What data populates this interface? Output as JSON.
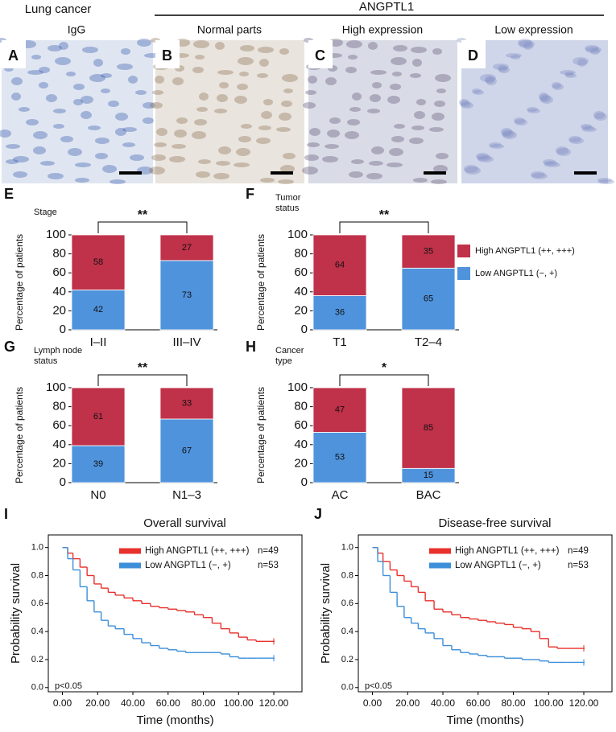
{
  "header": {
    "left": "Lung cancer",
    "right": "ANGPTL1"
  },
  "images": [
    {
      "letter": "A",
      "caption": "IgG"
    },
    {
      "letter": "B",
      "caption": "Normal parts"
    },
    {
      "letter": "C",
      "caption": "High expression"
    },
    {
      "letter": "D",
      "caption": "Low expression"
    }
  ],
  "chart_data": [
    {
      "type": "bar",
      "stacked": true,
      "letter": "E",
      "title": "Stage",
      "ylabel": "Percentage of patients",
      "significance": "**",
      "categories": [
        "I–II",
        "III–IV"
      ],
      "series": [
        {
          "color": "#4f93dd",
          "values": [
            42,
            73
          ]
        },
        {
          "color": "#c0314a",
          "values": [
            58,
            27
          ]
        }
      ],
      "ylim": [
        0,
        100
      ],
      "yticks": [
        0,
        20,
        40,
        60,
        80,
        100
      ]
    },
    {
      "type": "bar",
      "stacked": true,
      "letter": "F",
      "title": "Tumor status",
      "ylabel": "Percentage of patients",
      "significance": "**",
      "categories": [
        "T1",
        "T2–4"
      ],
      "legend": "right",
      "series": [
        {
          "name": "Low ANGPTL1 (−, +)",
          "color": "#4f93dd",
          "values": [
            36,
            65
          ]
        },
        {
          "name": "High ANGPTL1 (++, +++)",
          "color": "#c0314a",
          "values": [
            64,
            35
          ]
        }
      ],
      "ylim": [
        0,
        100
      ],
      "yticks": [
        0,
        20,
        40,
        60,
        80,
        100
      ]
    },
    {
      "type": "bar",
      "stacked": true,
      "letter": "G",
      "title": "Lymph node status",
      "ylabel": "Percentage of patients",
      "significance": "**",
      "categories": [
        "N0",
        "N1–3"
      ],
      "series": [
        {
          "color": "#4f93dd",
          "values": [
            39,
            67
          ]
        },
        {
          "color": "#c0314a",
          "values": [
            61,
            33
          ]
        }
      ],
      "ylim": [
        0,
        100
      ],
      "yticks": [
        0,
        20,
        40,
        60,
        80,
        100
      ]
    },
    {
      "type": "bar",
      "stacked": true,
      "letter": "H",
      "title": "Cancer type",
      "ylabel": "Percentage of patients",
      "significance": "*",
      "categories": [
        "AC",
        "BAC"
      ],
      "series": [
        {
          "color": "#4f93dd",
          "values": [
            53,
            15
          ]
        },
        {
          "color": "#c0314a",
          "values": [
            47,
            85
          ]
        }
      ],
      "ylim": [
        0,
        100
      ],
      "yticks": [
        0,
        20,
        40,
        60,
        80,
        100
      ]
    },
    {
      "type": "step",
      "letter": "I",
      "title": "Overall survival",
      "xlabel": "Time (months)",
      "ylabel": "Probability survival",
      "annotation": "p<0.05",
      "x": [
        0,
        3,
        6,
        10,
        14,
        18,
        22,
        26,
        30,
        35,
        40,
        45,
        50,
        55,
        60,
        65,
        70,
        75,
        80,
        85,
        90,
        95,
        100,
        105,
        110,
        120
      ],
      "series": [
        {
          "name": "High ANGPTL1 (++, +++)",
          "n": "n=49",
          "color": "#e8302c",
          "values": [
            1,
            0.96,
            0.92,
            0.86,
            0.8,
            0.74,
            0.71,
            0.68,
            0.66,
            0.64,
            0.62,
            0.6,
            0.58,
            0.57,
            0.56,
            0.55,
            0.54,
            0.52,
            0.5,
            0.46,
            0.42,
            0.39,
            0.36,
            0.34,
            0.33,
            0.33
          ]
        },
        {
          "name": "Low ANGPTL1 (−, +)",
          "n": "n=53",
          "color": "#3c8fd8",
          "values": [
            1,
            0.92,
            0.84,
            0.72,
            0.62,
            0.54,
            0.48,
            0.44,
            0.42,
            0.38,
            0.35,
            0.32,
            0.3,
            0.28,
            0.27,
            0.26,
            0.25,
            0.25,
            0.25,
            0.25,
            0.24,
            0.22,
            0.21,
            0.21,
            0.21,
            0.21
          ]
        }
      ],
      "xlim": [
        -8,
        136
      ],
      "ylim": [
        -0.03,
        1.09
      ],
      "xticks": [
        {
          "value": 0,
          "label": "0.00"
        },
        {
          "value": 20,
          "label": "20.00"
        },
        {
          "value": 40,
          "label": "40.00"
        },
        {
          "value": 60,
          "label": "60.00"
        },
        {
          "value": 80,
          "label": "80.00"
        },
        {
          "value": 100,
          "label": "100.00"
        },
        {
          "value": 120,
          "label": "120.00"
        }
      ],
      "yticks": [
        {
          "value": 0,
          "label": "0.0"
        },
        {
          "value": 0.2,
          "label": "0.2"
        },
        {
          "value": 0.4,
          "label": "0.4"
        },
        {
          "value": 0.6,
          "label": "0.6"
        },
        {
          "value": 0.8,
          "label": "0.8"
        },
        {
          "value": 1,
          "label": "1.0"
        }
      ]
    },
    {
      "type": "step",
      "letter": "J",
      "title": "Disease-free survival",
      "xlabel": "Time (months)",
      "ylabel": "Probability survival",
      "annotation": "p<0.05",
      "x": [
        0,
        3,
        6,
        10,
        14,
        18,
        22,
        26,
        30,
        35,
        40,
        45,
        50,
        55,
        60,
        65,
        70,
        75,
        80,
        85,
        90,
        95,
        100,
        105,
        110,
        120
      ],
      "series": [
        {
          "name": "High ANGPTL1 (++, +++)",
          "n": "n=49",
          "color": "#e8302c",
          "values": [
            1,
            0.96,
            0.9,
            0.84,
            0.8,
            0.76,
            0.72,
            0.68,
            0.62,
            0.56,
            0.54,
            0.52,
            0.5,
            0.49,
            0.48,
            0.47,
            0.46,
            0.45,
            0.43,
            0.42,
            0.4,
            0.35,
            0.29,
            0.28,
            0.28,
            0.28
          ]
        },
        {
          "name": "Low ANGPTL1 (−, +)",
          "n": "n=53",
          "color": "#3c8fd8",
          "values": [
            1,
            0.9,
            0.8,
            0.68,
            0.58,
            0.5,
            0.46,
            0.42,
            0.39,
            0.35,
            0.3,
            0.27,
            0.25,
            0.24,
            0.23,
            0.22,
            0.22,
            0.21,
            0.21,
            0.2,
            0.2,
            0.19,
            0.18,
            0.18,
            0.18,
            0.18
          ]
        }
      ],
      "xlim": [
        -8,
        136
      ],
      "ylim": [
        -0.03,
        1.09
      ],
      "xticks": [
        {
          "value": 0,
          "label": "0.00"
        },
        {
          "value": 20,
          "label": "20.00"
        },
        {
          "value": 40,
          "label": "40.00"
        },
        {
          "value": 60,
          "label": "60.00"
        },
        {
          "value": 80,
          "label": "80.00"
        },
        {
          "value": 100,
          "label": "100.00"
        },
        {
          "value": 120,
          "label": "120.00"
        }
      ],
      "yticks": [
        {
          "value": 0,
          "label": "0.0"
        },
        {
          "value": 0.2,
          "label": "0.2"
        },
        {
          "value": 0.4,
          "label": "0.4"
        },
        {
          "value": 0.6,
          "label": "0.6"
        },
        {
          "value": 0.8,
          "label": "0.8"
        },
        {
          "value": 1,
          "label": "1.0"
        }
      ]
    }
  ]
}
